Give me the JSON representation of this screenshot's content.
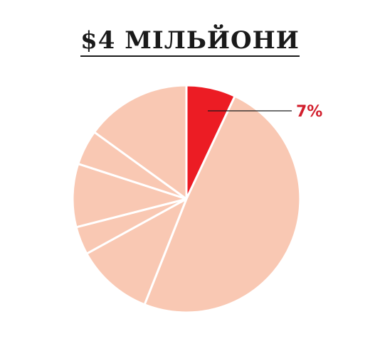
{
  "chart_data": {
    "type": "pie",
    "title": "$4 МІЛЬЙОНИ",
    "slices": [
      {
        "value": 7,
        "color": "#ec1c24",
        "highlight": true,
        "label": "7%"
      },
      {
        "value": 49,
        "color": "#f9c8b3"
      },
      {
        "value": 11,
        "color": "#f9c8b3"
      },
      {
        "value": 4,
        "color": "#f9c8b3"
      },
      {
        "value": 9,
        "color": "#f9c8b3"
      },
      {
        "value": 5,
        "color": "#f9c8b3"
      },
      {
        "value": 15,
        "color": "#f9c8b3"
      }
    ],
    "start_angle_deg": 0,
    "direction": "clockwise",
    "separator_color": "#ffffff",
    "annotation": {
      "text": "7%",
      "color": "#d21f2d",
      "line_color": "#1a1a1a"
    }
  }
}
